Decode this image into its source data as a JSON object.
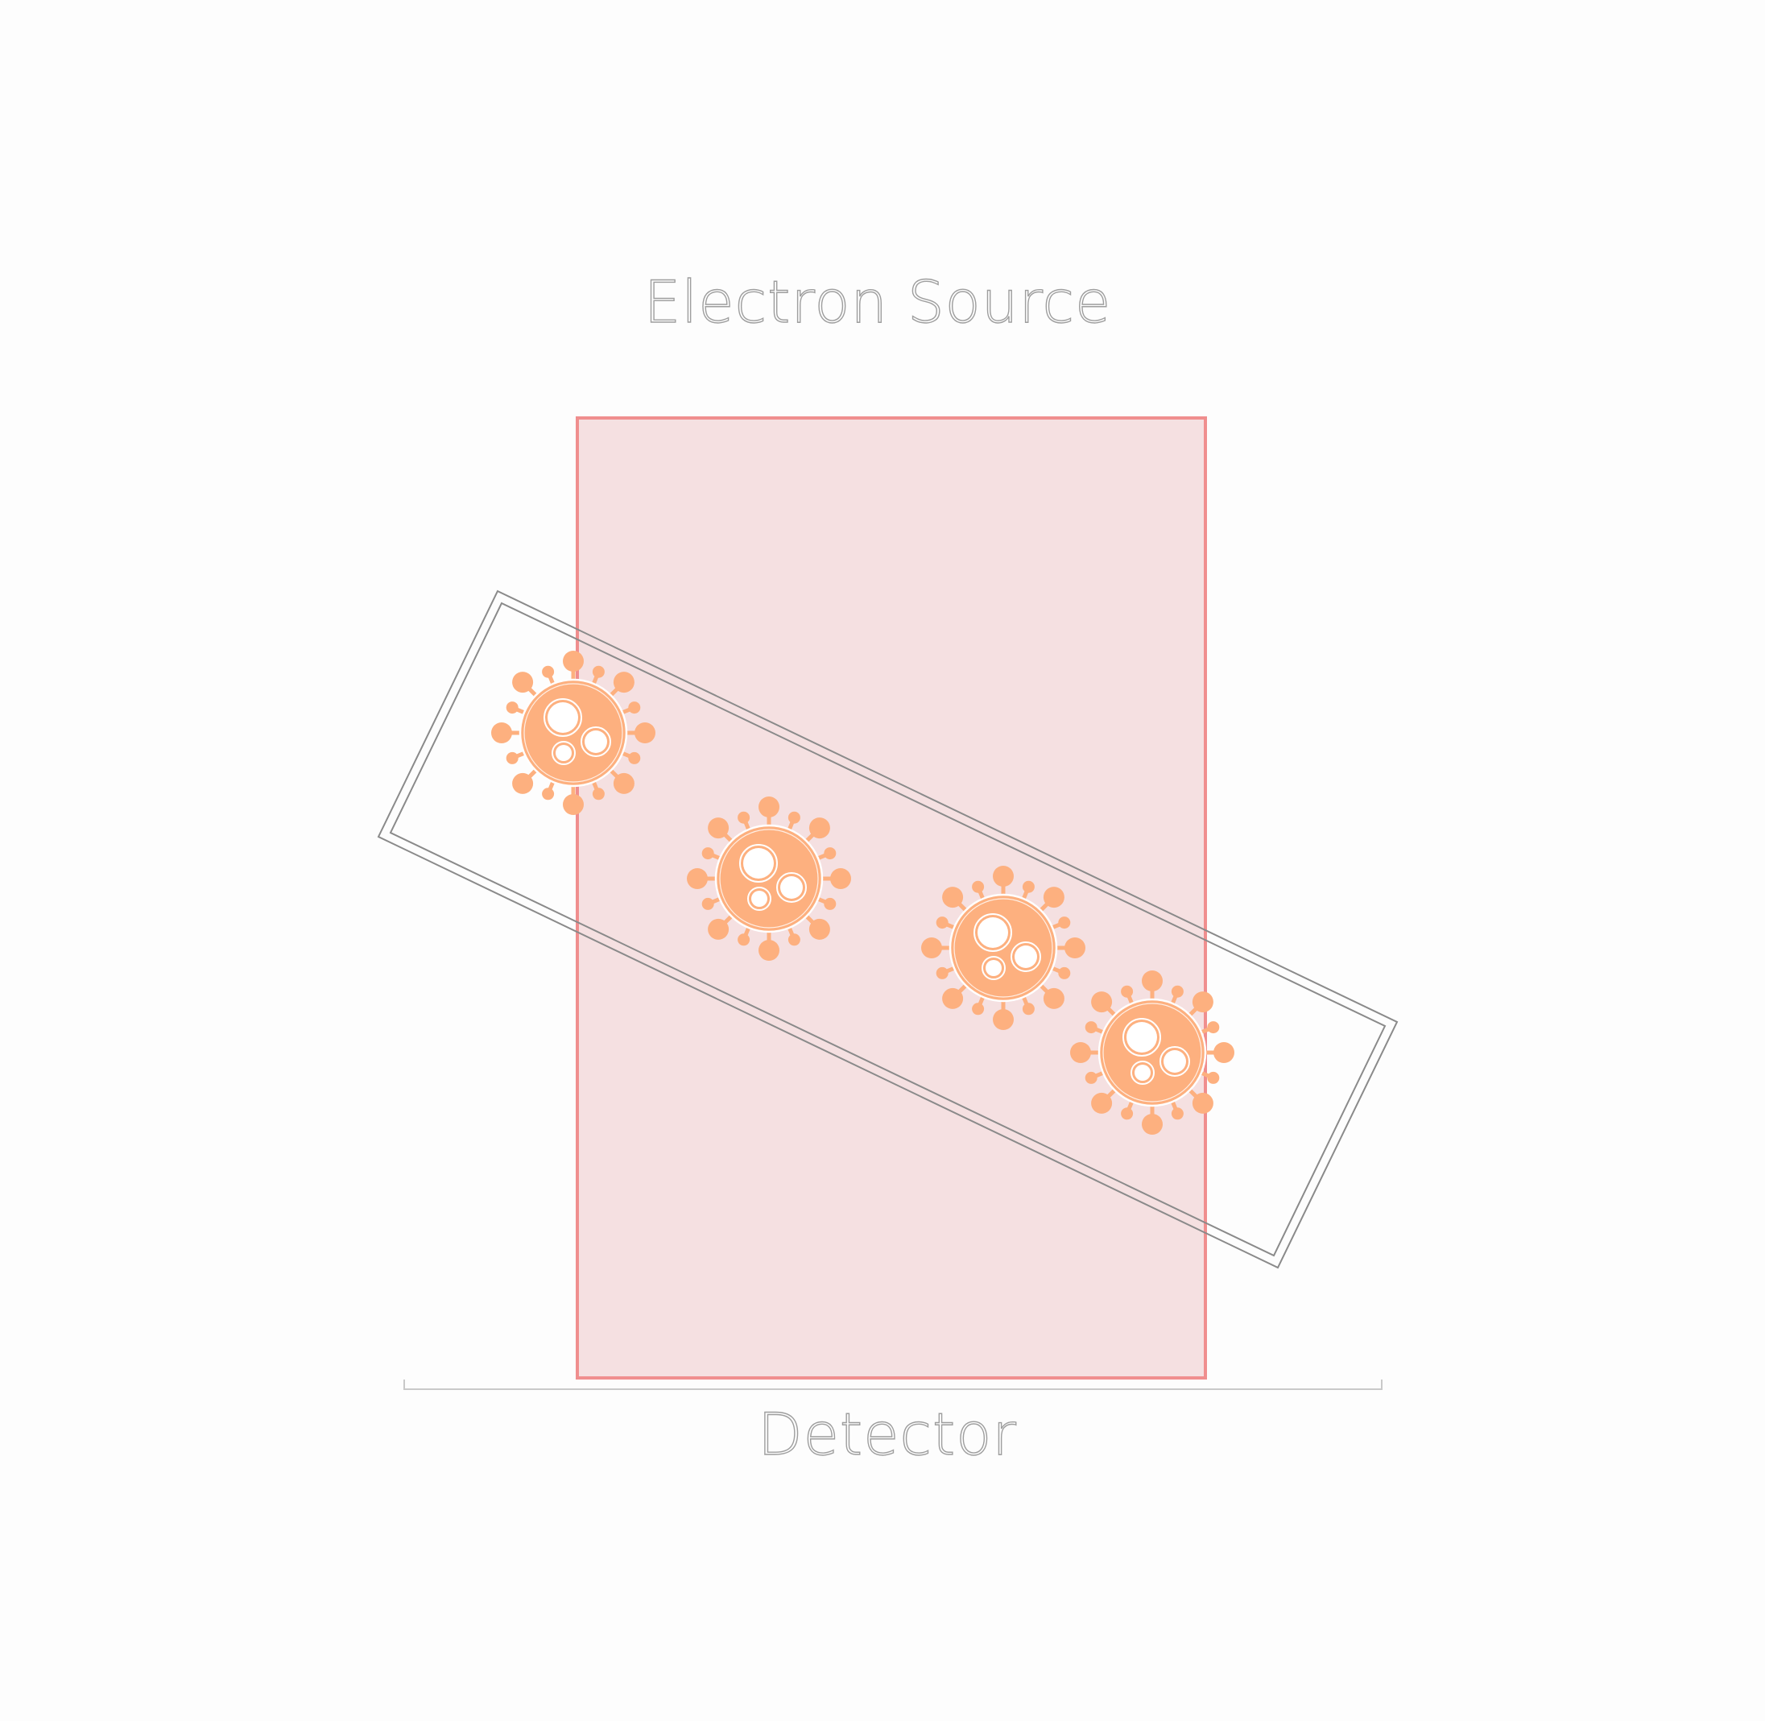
{
  "labels": {
    "source": "Electron Source",
    "detector": "Detector"
  },
  "colors": {
    "background": "#fdfdfd",
    "beam_fill": "#f5e0e1",
    "beam_stroke": "#f08e8e",
    "virus_fill": "#fdb07f",
    "virus_outline": "#ffffff",
    "slab_stroke": "#8a8a8a",
    "detector_line": "#c9c9c9",
    "text_outline": "#9e9e9e"
  },
  "elements": {
    "beam": "electron-beam",
    "specimen": "tilted-specimen-slab",
    "particles": [
      "virus-icon",
      "virus-icon",
      "virus-icon",
      "virus-icon"
    ]
  }
}
